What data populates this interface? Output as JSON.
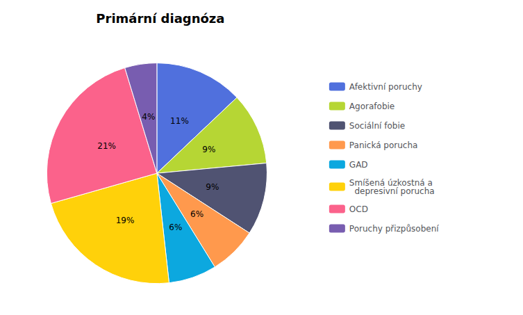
{
  "chart_data": {
    "type": "pie",
    "title": "Primární diagnóza",
    "categories": [
      "Afektivní poruchy",
      "Agorafobie",
      "Sociální fobie",
      "Panická porucha",
      "GAD",
      "Smíšená úzkostná a\n  depresivní porucha",
      "OCD",
      "Poruchy přizpůsobení"
    ],
    "values": [
      11,
      9,
      9,
      6,
      6,
      19,
      21,
      4
    ],
    "value_labels": [
      "11%",
      "9%",
      "9%",
      "6%",
      "6%",
      "19%",
      "21%",
      "4%"
    ],
    "data_labels": true,
    "legend": "right"
  }
}
